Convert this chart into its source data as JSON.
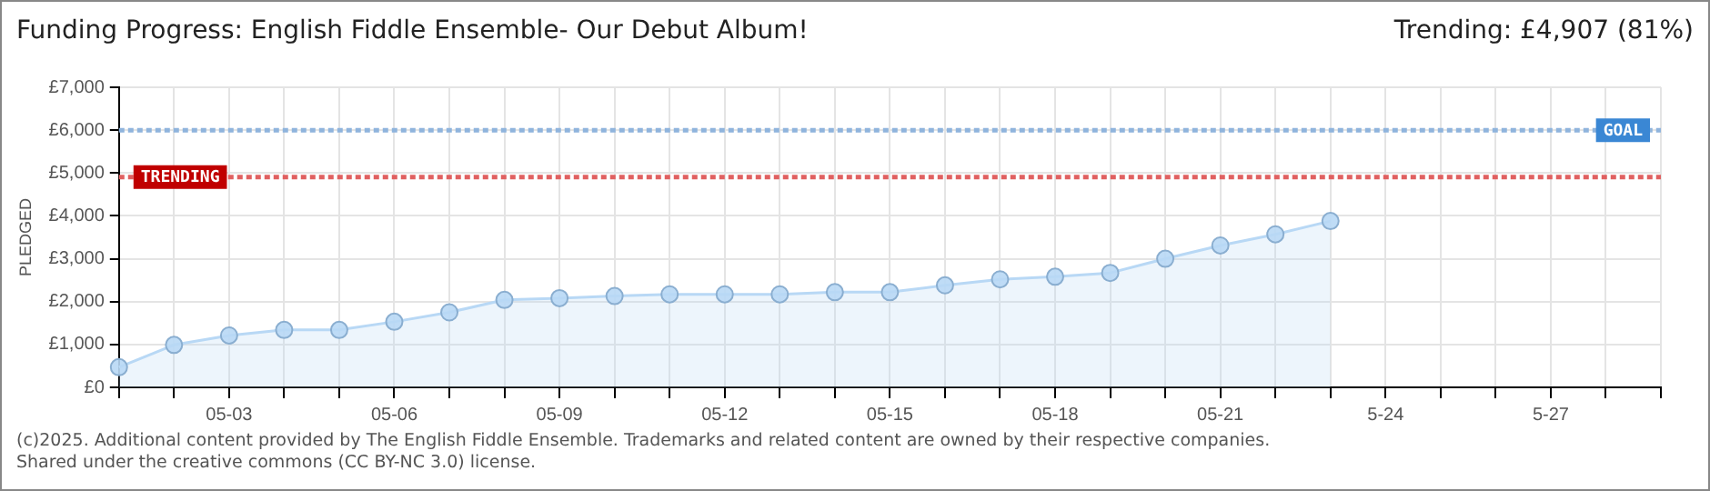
{
  "chart_data": {
    "type": "area",
    "title": "Funding Progress: English Fiddle Ensemble- Our Debut Album!",
    "subtitle": "Trending:  £4,907 (81%)",
    "ylabel": "PLEDGED",
    "categories": [
      null,
      null,
      "05-03",
      null,
      null,
      "05-06",
      null,
      null,
      "05-09",
      null,
      null,
      "05-12",
      null,
      null,
      "05-15",
      null,
      null,
      "05-18",
      null,
      null,
      "05-21",
      null,
      null,
      "5-24",
      null,
      null,
      "5-27",
      null,
      null
    ],
    "series": [
      {
        "color": "#b8d8f5",
        "values": [
          470,
          990,
          1210,
          1340,
          1340,
          1530,
          1750,
          2040,
          2080,
          2130,
          2170,
          2170,
          2170,
          2220,
          2220,
          2380,
          2520,
          2580,
          2670,
          3000,
          3310,
          3570,
          3880,
          null,
          null,
          null,
          null,
          null,
          null
        ]
      }
    ],
    "ylim": [
      0,
      7000
    ],
    "yticks": [
      {
        "value": 0,
        "label": "£0"
      },
      {
        "value": 1000,
        "label": "£1,000"
      },
      {
        "value": 2000,
        "label": "£2,000"
      },
      {
        "value": 3000,
        "label": "£3,000"
      },
      {
        "value": 4000,
        "label": "£4,000"
      },
      {
        "value": 5000,
        "label": "£5,000"
      },
      {
        "value": 6000,
        "label": "£6,000"
      },
      {
        "value": 7000,
        "label": "£7,000"
      }
    ],
    "ref_lines": [
      {
        "axis": "y",
        "value": 6000,
        "label": "GOAL",
        "color": "#8fb4dd",
        "line_style": "dotted"
      },
      {
        "axis": "y",
        "value": 4907,
        "label": "TRENDING",
        "color": "#e06060",
        "line_style": "dotted"
      }
    ],
    "grid": true,
    "marker": "circle",
    "line_style": "solid",
    "annotations": [
      "(c)2025. Additional content provided by The English Fiddle Ensemble. Trademarks and related content are owned by their respective companies.",
      "Shared under the creative commons (CC BY-NC 3.0) license."
    ]
  }
}
